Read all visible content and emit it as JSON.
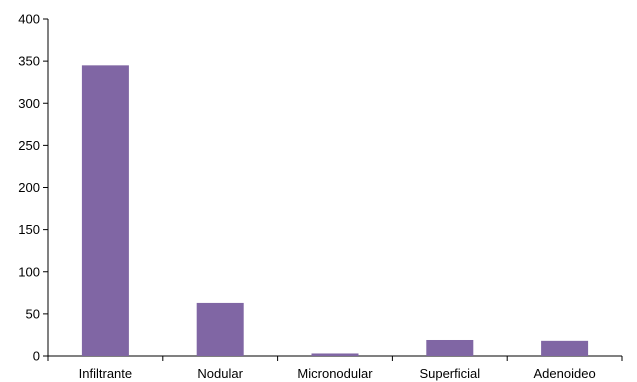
{
  "chart_data": {
    "type": "bar",
    "categories": [
      "Infiltrante",
      "Nodular",
      "Micronodular",
      "Superficial",
      "Adenoideo"
    ],
    "values": [
      345,
      63,
      3,
      19,
      18
    ],
    "title": "",
    "xlabel": "",
    "ylabel": "",
    "ylim": [
      0,
      400
    ],
    "yticks": [
      0,
      50,
      100,
      150,
      200,
      250,
      300,
      350,
      400
    ],
    "bar_color": "#8066a4",
    "grid": false,
    "legend": "none"
  }
}
